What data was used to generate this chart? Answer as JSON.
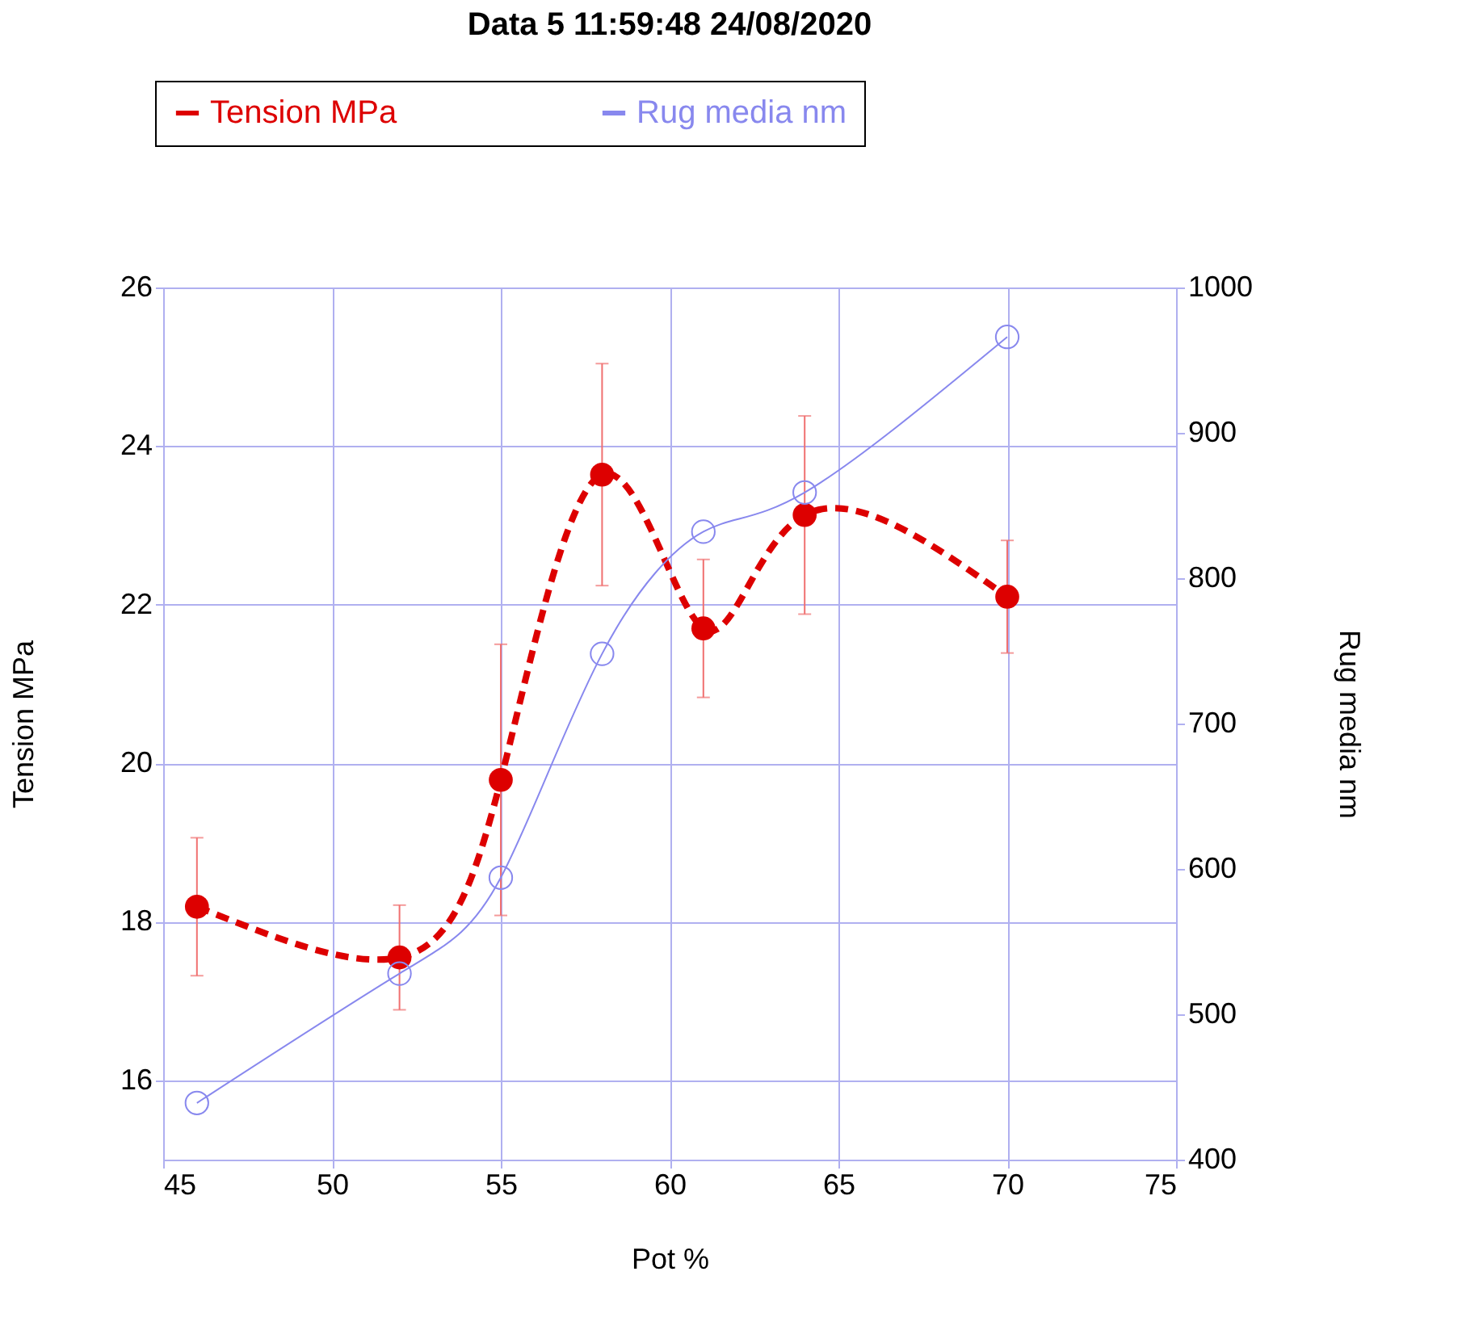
{
  "chart_data": {
    "type": "line",
    "title": "Data 5 11:59:48  24/08/2020",
    "xlabel": "Pot %",
    "ylabel": "Tension MPa",
    "y2label": "Rug media nm",
    "x": [
      46,
      52,
      55,
      58,
      61,
      64,
      70
    ],
    "series": [
      {
        "name": "Tension MPa",
        "color": "#dd0000",
        "line_style": "dashed",
        "values": [
          18.19,
          17.55,
          19.79,
          23.64,
          21.7,
          23.13,
          22.1
        ],
        "errors": [
          0.87,
          0.66,
          1.71,
          1.4,
          0.87,
          1.25,
          0.71
        ]
      },
      {
        "name": "Rug media nm",
        "color": "#8888ee",
        "line_style": "solid",
        "axis": "y2",
        "values": [
          439,
          528,
          594,
          748,
          832,
          859,
          966
        ]
      }
    ],
    "xlim": [
      45,
      75
    ],
    "xticks": [
      45,
      50,
      55,
      60,
      65,
      70,
      75
    ],
    "ylim": [
      15,
      26
    ],
    "yticks": [
      16,
      18,
      20,
      22,
      24,
      26
    ],
    "y2lim": [
      400,
      1000
    ],
    "y2ticks": [
      400,
      500,
      600,
      700,
      800,
      900,
      1000
    ],
    "grid": true,
    "legend": "top",
    "marker": "circle"
  }
}
